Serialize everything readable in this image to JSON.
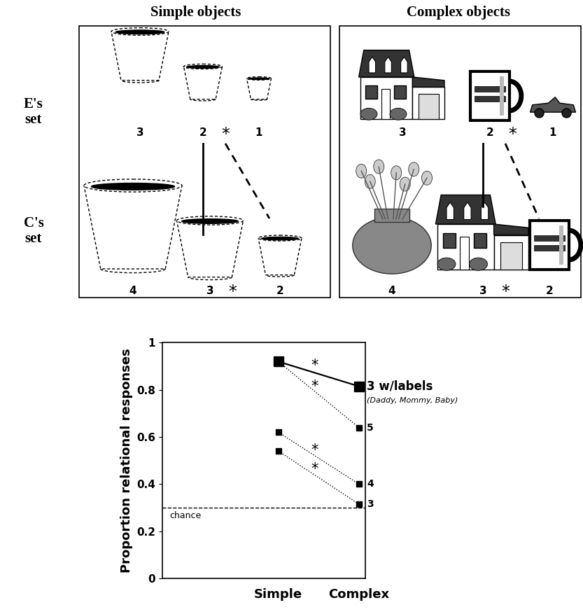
{
  "diagram": {
    "row_labels": [
      "E's\nset",
      "C's\nset"
    ],
    "panels": [
      {
        "title": "Simple objects",
        "sets": [
          {
            "items": [
              {
                "number": 3
              },
              {
                "number": 2,
                "mark": "*"
              },
              {
                "number": 1
              }
            ]
          },
          {
            "items": [
              {
                "number": 4
              },
              {
                "number": 3,
                "mark": "*"
              },
              {
                "number": 2
              }
            ]
          }
        ]
      },
      {
        "title": "Complex objects",
        "sets": [
          {
            "items": [
              {
                "number": 3
              },
              {
                "number": 2,
                "mark": "*"
              },
              {
                "number": 1
              }
            ]
          },
          {
            "items": [
              {
                "number": 4
              },
              {
                "number": 3,
                "mark": "*"
              },
              {
                "number": 2
              }
            ]
          }
        ]
      }
    ]
  },
  "chart_data": {
    "type": "line",
    "categories": [
      "Simple",
      "Complex"
    ],
    "y_label": "Proportion relational responses",
    "ylim": [
      0,
      1
    ],
    "yticks": [
      0,
      0.2,
      0.4,
      0.6,
      0.8,
      1
    ],
    "reference_lines": [
      {
        "value": 0.3,
        "label": "chance",
        "line_style": "dashed"
      }
    ],
    "series": [
      {
        "name": "3 w/labels",
        "values": [
          0.92,
          0.815
        ],
        "color": "#000000",
        "marker": "square",
        "line_style": "solid",
        "annotation": "*",
        "note": "(Daddy, Mommy, Baby)"
      },
      {
        "name": "5",
        "values": [
          0.92,
          0.64
        ],
        "color": "#000000",
        "marker": "square",
        "line_style": "dotted",
        "annotation": "*"
      },
      {
        "name": "4",
        "values": [
          0.62,
          0.4
        ],
        "color": "#000000",
        "marker": "square",
        "line_style": "dotted",
        "annotation": "*"
      },
      {
        "name": "3",
        "values": [
          0.54,
          0.315
        ],
        "color": "#000000",
        "marker": "square",
        "line_style": "dotted",
        "annotation": "*"
      }
    ]
  }
}
